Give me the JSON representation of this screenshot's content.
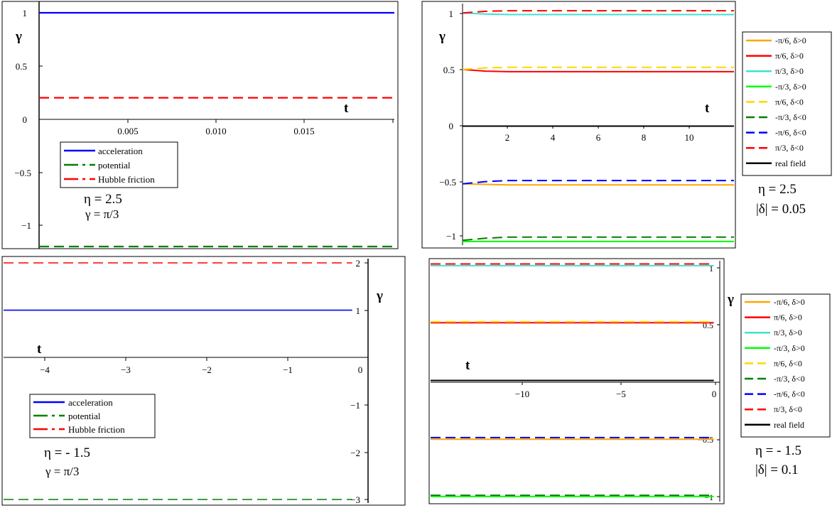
{
  "colors": {
    "acceleration": "#0000ff",
    "potential": "#008000",
    "hubble": "#ff0000",
    "c1": "#ffa500",
    "c2": "#ff0000",
    "c3": "#40e0d0",
    "c4": "#00ff00",
    "c5": "#ffd700",
    "c6": "#008000",
    "c7": "#0000ff",
    "c8": "#ff0000",
    "real": "#000000"
  },
  "chart_data": [
    {
      "type": "line",
      "xlabel": "t",
      "ylabel": "γ",
      "xlim": [
        0,
        0.02
      ],
      "ylim": [
        -1.2,
        1
      ],
      "xticks": [
        "0.005",
        "0.010",
        "0.015"
      ],
      "yticks": [
        "1",
        "0.5",
        "0",
        "−0.5",
        "−1"
      ],
      "legend": [
        "acceleration",
        "potential",
        "Hubble friction"
      ],
      "series": [
        {
          "name": "acceleration",
          "style": "solid",
          "color": "acceleration",
          "x": [
            0,
            0.02
          ],
          "y": [
            1,
            1
          ]
        },
        {
          "name": "potential",
          "style": "dashed",
          "color": "potential",
          "x": [
            0,
            0.02
          ],
          "y": [
            -1.2,
            -1.2
          ]
        },
        {
          "name": "Hubble friction",
          "style": "dashed",
          "color": "hubble",
          "x": [
            0,
            0.02
          ],
          "y": [
            0.2,
            0.2
          ]
        }
      ],
      "annotations": [
        "η = 2.5",
        "γ = π/3"
      ]
    },
    {
      "type": "line",
      "xlabel": "t",
      "ylabel": "γ",
      "xlim": [
        0,
        11.8
      ],
      "ylim": [
        -1.1,
        1.1
      ],
      "xticks": [
        "2",
        "4",
        "6",
        "8",
        "10"
      ],
      "yticks": [
        "1",
        "0.5",
        "0",
        "−0.5",
        "−1"
      ],
      "legend": [
        "-π/6, δ>0",
        "π/6, δ>0",
        "π/3, δ>0",
        "-π/3, δ>0",
        "π/6, δ<0",
        "-π/3, δ<0",
        "-π/6, δ<0",
        "π/3, δ<0",
        "real field"
      ],
      "series": [
        {
          "name": "-π/6, δ>0",
          "style": "solid",
          "color": "c1",
          "x": [
            0,
            1,
            2,
            11.8
          ],
          "y": [
            -0.53,
            -0.535,
            -0.54,
            -0.54
          ]
        },
        {
          "name": "π/6, δ>0",
          "style": "solid",
          "color": "c2",
          "x": [
            0,
            1,
            2,
            11.8
          ],
          "y": [
            0.52,
            0.505,
            0.5,
            0.5
          ]
        },
        {
          "name": "π/3, δ>0",
          "style": "solid",
          "color": "c3",
          "x": [
            0,
            1,
            2,
            11.8
          ],
          "y": [
            1.04,
            1.03,
            1.025,
            1.025
          ]
        },
        {
          "name": "-π/3, δ>0",
          "style": "solid",
          "color": "c4",
          "x": [
            0,
            11.8
          ],
          "y": [
            -1.06,
            -1.06
          ]
        },
        {
          "name": "π/6, δ<0",
          "style": "dashed",
          "color": "c5",
          "x": [
            0,
            1,
            2,
            11.8
          ],
          "y": [
            0.52,
            0.535,
            0.54,
            0.54
          ]
        },
        {
          "name": "-π/3, δ<0",
          "style": "dashed",
          "color": "c6",
          "x": [
            0,
            1,
            2,
            11.8
          ],
          "y": [
            -1.05,
            -1.03,
            -1.02,
            -1.02
          ]
        },
        {
          "name": "-π/6, δ<0",
          "style": "dashed",
          "color": "c7",
          "x": [
            0,
            1,
            2,
            11.8
          ],
          "y": [
            -0.53,
            -0.51,
            -0.5,
            -0.5
          ]
        },
        {
          "name": "π/3, δ<0",
          "style": "dashed",
          "color": "c8",
          "x": [
            0,
            1,
            2,
            11.8
          ],
          "y": [
            1.04,
            1.055,
            1.06,
            1.06
          ]
        },
        {
          "name": "real field",
          "style": "solid",
          "color": "real",
          "x": [
            0,
            11.8
          ],
          "y": [
            0,
            0
          ]
        }
      ],
      "annotations": [
        "η = 2.5",
        "|δ| = 0.05"
      ]
    },
    {
      "type": "line",
      "xlabel": "t",
      "ylabel": "γ",
      "xlim": [
        -4.4,
        0.2
      ],
      "ylim": [
        -3,
        2
      ],
      "xticks": [
        "−4",
        "−3",
        "−2",
        "−1",
        "0"
      ],
      "yticks": [
        "2",
        "1",
        "−1",
        "−2",
        "−3"
      ],
      "legend": [
        "acceleration",
        "potential",
        "Hubble friction"
      ],
      "series": [
        {
          "name": "acceleration",
          "style": "solid",
          "color": "acceleration",
          "x": [
            -4.4,
            0
          ],
          "y": [
            1,
            1
          ]
        },
        {
          "name": "potential",
          "style": "dashed",
          "color": "potential",
          "x": [
            -4.4,
            0
          ],
          "y": [
            -3,
            -3
          ]
        },
        {
          "name": "Hubble friction",
          "style": "dashed",
          "color": "hubble",
          "x": [
            -4.4,
            0
          ],
          "y": [
            2,
            2
          ]
        }
      ],
      "annotations": [
        "η = - 1.5",
        "γ = π/3"
      ]
    },
    {
      "type": "line",
      "xlabel": "t",
      "ylabel": "γ",
      "xlim": [
        -14.3,
        0.3
      ],
      "ylim": [
        -1.05,
        1.05
      ],
      "xticks": [
        "−10",
        "−5",
        "0"
      ],
      "yticks": [
        "1",
        "0.5",
        "−0.5",
        "−1"
      ],
      "legend": [
        "-π/6, δ>0",
        "π/6, δ>0",
        "π/3, δ>0",
        "-π/3, δ>0",
        "π/6, δ<0",
        "-π/3, δ<0",
        "-π/6, δ<0",
        "π/3, δ<0",
        "real field"
      ],
      "series": [
        {
          "name": "-π/6, δ>0",
          "style": "solid",
          "color": "c1",
          "x": [
            -14.3,
            0
          ],
          "y": [
            -0.51,
            -0.51
          ]
        },
        {
          "name": "π/6, δ>0",
          "style": "solid",
          "color": "c2",
          "x": [
            -14.3,
            0
          ],
          "y": [
            0.5,
            0.5
          ]
        },
        {
          "name": "π/3, δ>0",
          "style": "solid",
          "color": "c3",
          "x": [
            -14.3,
            0
          ],
          "y": [
            0.995,
            0.995
          ]
        },
        {
          "name": "-π/3, δ>0",
          "style": "solid",
          "color": "c4",
          "x": [
            -14.3,
            0
          ],
          "y": [
            -1.005,
            -1.005
          ]
        },
        {
          "name": "π/6, δ<0",
          "style": "dashed",
          "color": "c5",
          "x": [
            -14.3,
            0
          ],
          "y": [
            0.51,
            0.51
          ]
        },
        {
          "name": "-π/3, δ<0",
          "style": "dashed",
          "color": "c6",
          "x": [
            -14.3,
            0
          ],
          "y": [
            -0.995,
            -0.995
          ]
        },
        {
          "name": "-π/6, δ<0",
          "style": "dashed",
          "color": "c7",
          "x": [
            -14.3,
            0
          ],
          "y": [
            -0.495,
            -0.495
          ]
        },
        {
          "name": "π/3, δ<0",
          "style": "dashed",
          "color": "c8",
          "x": [
            -14.3,
            0
          ],
          "y": [
            1.01,
            1.01
          ]
        },
        {
          "name": "real field",
          "style": "solid",
          "color": "real",
          "x": [
            -14.3,
            0
          ],
          "y": [
            0,
            0
          ]
        }
      ],
      "annotations": [
        "η = - 1.5",
        "|δ| = 0.1"
      ]
    }
  ]
}
